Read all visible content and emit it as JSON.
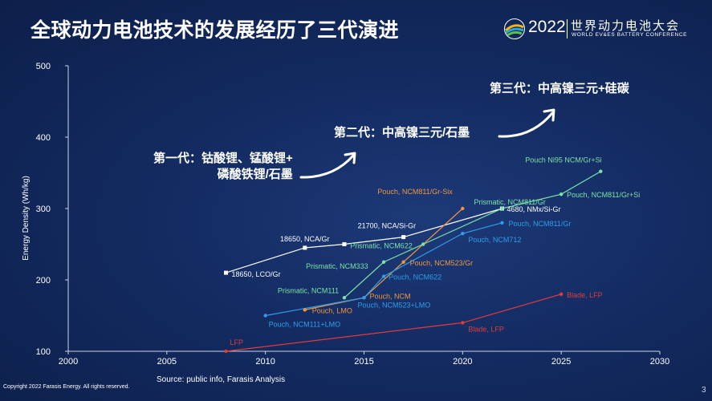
{
  "title": "全球动力电池技术的发展经历了三代演进",
  "logo": {
    "year": "2022",
    "name_cn": "世界动力电池大会",
    "name_en": "WORLD EV&ES BATTERY CONFERENCE"
  },
  "generations": {
    "gen1_line1": "第一代：钴酸锂、锰酸锂+",
    "gen1_line2": "磷酸铁锂/石墨",
    "gen2": "第二代：中高镍三元/石墨",
    "gen3": "第三代：中高镍三元+硅碳"
  },
  "footer": {
    "copyright": "Copyright 2022 Farasis Energy. All rights reserved.",
    "source": "Source: public info, Farasis Analysis",
    "page": "3"
  },
  "chart_data": {
    "type": "line",
    "xlabel": "",
    "ylabel": "Energy Density (Wh/kg)",
    "xlim": [
      2000,
      2030
    ],
    "ylim": [
      100,
      500
    ],
    "x_ticks": [
      "2000",
      "2005",
      "2010",
      "2015",
      "2020",
      "2025",
      "2030"
    ],
    "y_ticks": [
      "100",
      "200",
      "300",
      "400",
      "500"
    ],
    "series": [
      {
        "name": "cylindrical",
        "color": "#ffffff",
        "marker": "square",
        "points": [
          {
            "x": 2008,
            "y": 210,
            "label": "18650, LCO/Gr"
          },
          {
            "x": 2012,
            "y": 245,
            "label": "18650, NCA/Gr"
          },
          {
            "x": 2014,
            "y": 250,
            "label": ""
          },
          {
            "x": 2017,
            "y": 260,
            "label": "21700, NCA/Si-Gr"
          },
          {
            "x": 2022,
            "y": 300,
            "label": "4680, NMx/Si-Gr"
          }
        ]
      },
      {
        "name": "prismatic",
        "color": "#7de3a6",
        "marker": "circle",
        "points": [
          {
            "x": 2014,
            "y": 175,
            "label": "Prismatic, NCM111"
          },
          {
            "x": 2016,
            "y": 225,
            "label": "Prismatic, NCM333"
          },
          {
            "x": 2018,
            "y": 250,
            "label": "Prismatic, NCM622"
          },
          {
            "x": 2022,
            "y": 300,
            "label": "Prismatic, NCM811/Gr"
          },
          {
            "x": 2025,
            "y": 320,
            "label": "Pouch, NCM811/Gr+Si"
          },
          {
            "x": 2027,
            "y": 352,
            "label": "Pouch Ni95 NCM/Gr+Si"
          }
        ]
      },
      {
        "name": "pouch_orange",
        "color": "#f0963c",
        "marker": "circle",
        "points": [
          {
            "x": 2012,
            "y": 158,
            "label": "Pouch, LMO"
          },
          {
            "x": 2015,
            "y": 175,
            "label": "Pouch, NCM"
          },
          {
            "x": 2017,
            "y": 225,
            "label": "Pouch, NCM523/Gr"
          },
          {
            "x": 2020,
            "y": 300,
            "label": "Pouch, NCM811/Gr-Six"
          }
        ]
      },
      {
        "name": "pouch_blue",
        "color": "#2e9ee8",
        "marker": "circle",
        "points": [
          {
            "x": 2010,
            "y": 150,
            "label": "Pouch, NCM111+LMO"
          },
          {
            "x": 2015,
            "y": 175,
            "label": "Pouch, NCM523+LMO"
          },
          {
            "x": 2016,
            "y": 205,
            "label": "Pouch, NCM622"
          },
          {
            "x": 2020,
            "y": 265,
            "label": "Pouch, NCM712"
          },
          {
            "x": 2022,
            "y": 280,
            "label": "Pouch, NCM811/Gr"
          }
        ]
      },
      {
        "name": "lfp",
        "color": "#e23a3a",
        "marker": "circle",
        "points": [
          {
            "x": 2008,
            "y": 100,
            "label": "LFP"
          },
          {
            "x": 2020,
            "y": 140,
            "label": "Blade, LFP"
          },
          {
            "x": 2025,
            "y": 180,
            "label": "Blade, LFP"
          }
        ]
      }
    ]
  }
}
